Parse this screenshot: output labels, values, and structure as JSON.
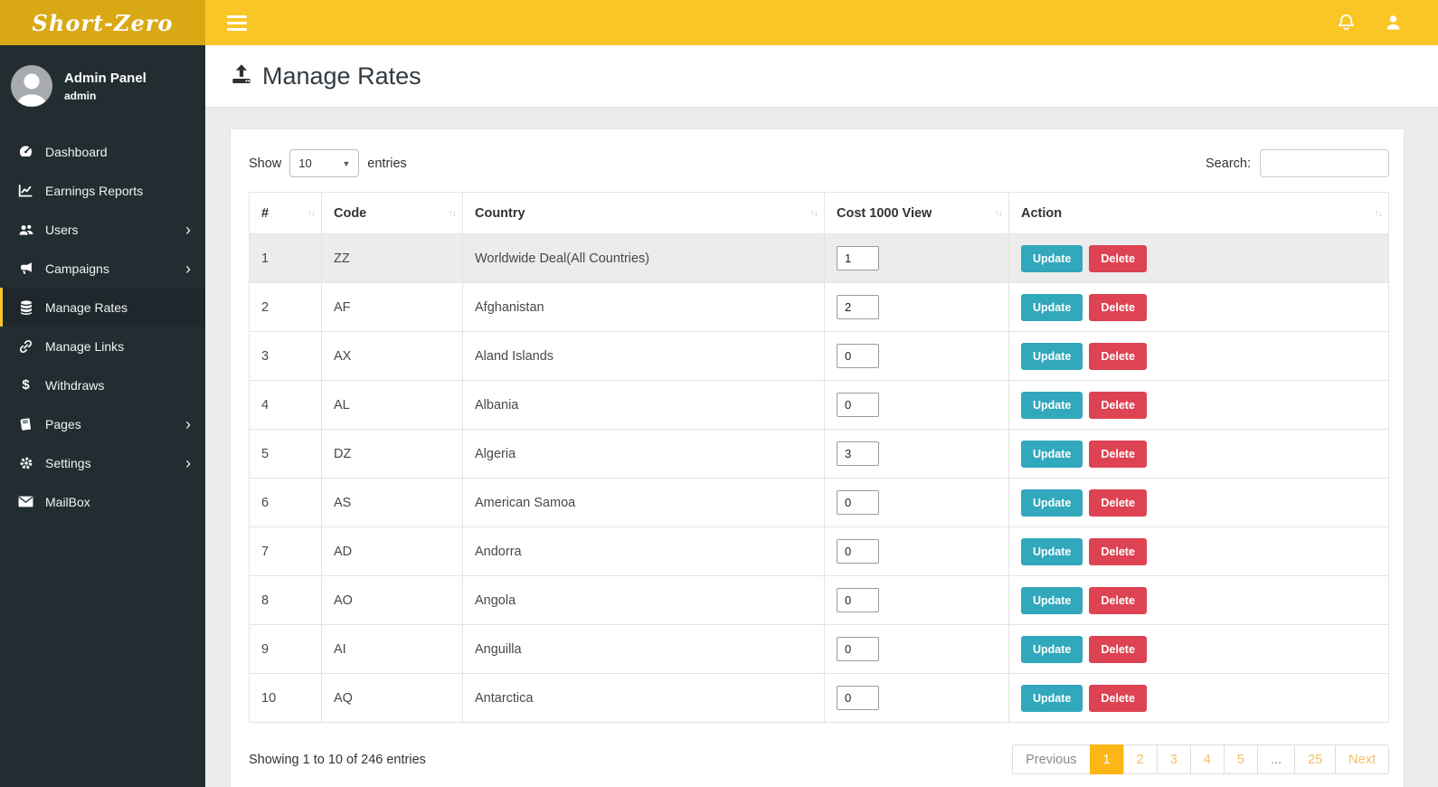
{
  "brand": {
    "logo": "Short-Zero"
  },
  "topbar": {
    "icons": [
      "hamburger-icon",
      "bell-icon",
      "user-icon"
    ]
  },
  "sidebar": {
    "profile": {
      "name": "Admin Panel",
      "role": "admin"
    },
    "items": [
      {
        "label": "Dashboard",
        "icon": "dashboard-icon",
        "expandable": false,
        "active": false
      },
      {
        "label": "Earnings Reports",
        "icon": "chart-line-icon",
        "expandable": false,
        "active": false
      },
      {
        "label": "Users",
        "icon": "users-icon",
        "expandable": true,
        "active": false
      },
      {
        "label": "Campaigns",
        "icon": "bullhorn-icon",
        "expandable": true,
        "active": false
      },
      {
        "label": "Manage Rates",
        "icon": "database-icon",
        "expandable": false,
        "active": true
      },
      {
        "label": "Manage Links",
        "icon": "link-icon",
        "expandable": false,
        "active": false
      },
      {
        "label": "Withdraws",
        "icon": "dollar-icon",
        "expandable": false,
        "active": false
      },
      {
        "label": "Pages",
        "icon": "book-icon",
        "expandable": true,
        "active": false
      },
      {
        "label": "Settings",
        "icon": "gear-icon",
        "expandable": true,
        "active": false
      },
      {
        "label": "MailBox",
        "icon": "envelope-icon",
        "expandable": false,
        "active": false
      }
    ]
  },
  "page": {
    "title": "Manage Rates",
    "title_icon": "upload-icon"
  },
  "datatable": {
    "length_menu": {
      "prefix": "Show",
      "value": "10",
      "suffix": "entries"
    },
    "search": {
      "label": "Search:",
      "value": ""
    },
    "columns": [
      {
        "label": "#"
      },
      {
        "label": "Code"
      },
      {
        "label": "Country"
      },
      {
        "label": "Cost 1000 View"
      },
      {
        "label": "Action"
      }
    ],
    "action_labels": {
      "update": "Update",
      "delete": "Delete"
    },
    "rows": [
      {
        "num": "1",
        "code": "ZZ",
        "country": "Worldwide Deal(All Countries)",
        "cost": "1",
        "highlighted": true
      },
      {
        "num": "2",
        "code": "AF",
        "country": "Afghanistan",
        "cost": "2",
        "highlighted": false
      },
      {
        "num": "3",
        "code": "AX",
        "country": "Aland Islands",
        "cost": "0",
        "highlighted": false
      },
      {
        "num": "4",
        "code": "AL",
        "country": "Albania",
        "cost": "0",
        "highlighted": false
      },
      {
        "num": "5",
        "code": "DZ",
        "country": "Algeria",
        "cost": "3",
        "highlighted": false
      },
      {
        "num": "6",
        "code": "AS",
        "country": "American Samoa",
        "cost": "0",
        "highlighted": false
      },
      {
        "num": "7",
        "code": "AD",
        "country": "Andorra",
        "cost": "0",
        "highlighted": false
      },
      {
        "num": "8",
        "code": "AO",
        "country": "Angola",
        "cost": "0",
        "highlighted": false
      },
      {
        "num": "9",
        "code": "AI",
        "country": "Anguilla",
        "cost": "0",
        "highlighted": false
      },
      {
        "num": "10",
        "code": "AQ",
        "country": "Antarctica",
        "cost": "0",
        "highlighted": false
      }
    ],
    "info": "Showing 1 to 10 of 246 entries",
    "pagination": [
      {
        "label": "Previous",
        "type": "prev",
        "active": false
      },
      {
        "label": "1",
        "type": "page",
        "active": true
      },
      {
        "label": "2",
        "type": "page",
        "active": false
      },
      {
        "label": "3",
        "type": "page",
        "active": false
      },
      {
        "label": "4",
        "type": "page",
        "active": false
      },
      {
        "label": "5",
        "type": "page",
        "active": false
      },
      {
        "label": "...",
        "type": "ellipsis",
        "active": false
      },
      {
        "label": "25",
        "type": "page",
        "active": false
      },
      {
        "label": "Next",
        "type": "next",
        "active": false
      }
    ]
  },
  "glyphs": {
    "select_caret": "▼",
    "sort": "↑↓",
    "chevron": "›"
  },
  "colors": {
    "topbar_bg": "#f9c625",
    "logo_bg": "#d9a815",
    "sidebar_bg": "#222d32",
    "sidebar_active_bg": "#1e282c",
    "accent_yellow": "#fcb615",
    "pagination_link": "#f4be66",
    "update_button": "#31a8bc",
    "delete_button": "#dd4352",
    "content_bg": "#ececec",
    "highlight_row_bg": "#ececec"
  }
}
